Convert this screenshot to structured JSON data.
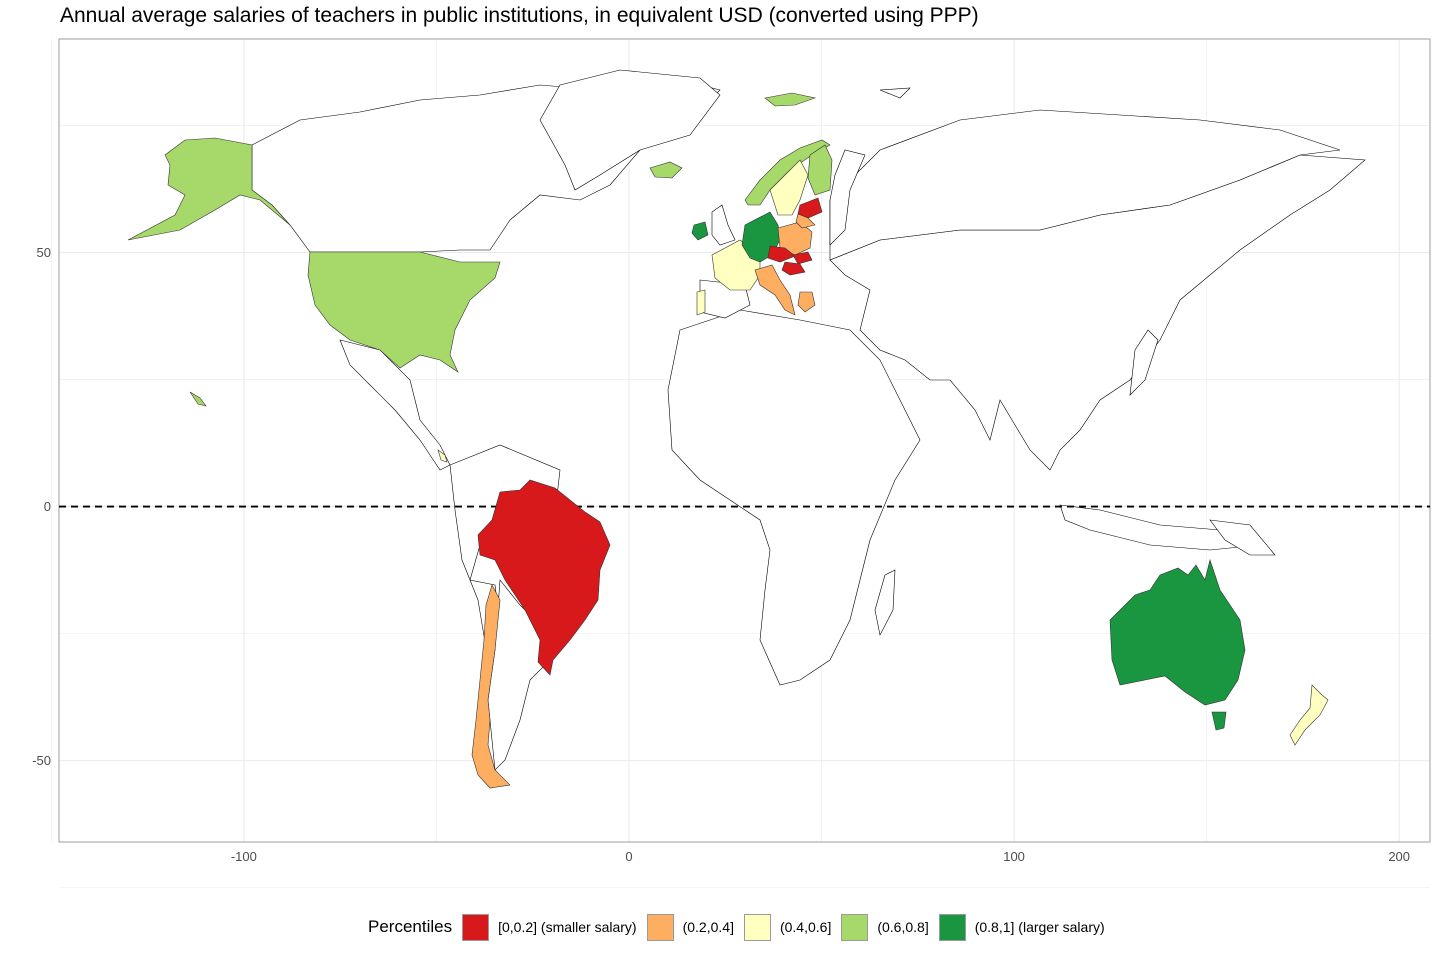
{
  "title": "Annual average salaries of teachers in public institutions, in equivalent USD (converted using PPP)",
  "colors": {
    "q1": "#d7191c",
    "q2": "#fdae61",
    "q3": "#ffffbf",
    "q4": "#a6d96a",
    "q5": "#1a9641",
    "no_data": "#ffffff",
    "grid": "#ebebeb",
    "outline": "#000000"
  },
  "axes": {
    "x_ticks": [
      {
        "value": -100,
        "label": "-100"
      },
      {
        "value": 0,
        "label": "0"
      },
      {
        "value": 100,
        "label": "100"
      },
      {
        "value": 200,
        "label": "200"
      }
    ],
    "y_ticks": [
      {
        "value": 50,
        "label": "50"
      },
      {
        "value": 0,
        "label": "0"
      },
      {
        "value": -50,
        "label": "-50"
      }
    ],
    "x_range": [
      -148,
      208
    ],
    "y_range": [
      -66,
      92
    ],
    "equator_line": "dashed"
  },
  "legend": {
    "title": "Percentiles",
    "position": "bottom",
    "items": [
      {
        "label": "[0,0.2] (smaller salary)",
        "color": "#d7191c"
      },
      {
        "label": "(0.2,0.4]",
        "color": "#fdae61"
      },
      {
        "label": "(0.4,0.6]",
        "color": "#ffffbf"
      },
      {
        "label": "(0.6,0.8]",
        "color": "#a6d96a"
      },
      {
        "label": "(0.8,1] (larger salary)",
        "color": "#1a9641"
      }
    ]
  },
  "countries": [
    {
      "name": "United States",
      "class": "q4"
    },
    {
      "name": "Alaska",
      "class": "q4"
    },
    {
      "name": "Brazil",
      "class": "q1"
    },
    {
      "name": "Chile",
      "class": "q2"
    },
    {
      "name": "Costa Rica",
      "class": "q3"
    },
    {
      "name": "Australia",
      "class": "q5"
    },
    {
      "name": "New Zealand",
      "class": "q3"
    },
    {
      "name": "Ireland",
      "class": "q5"
    },
    {
      "name": "Germany",
      "class": "q5"
    },
    {
      "name": "France",
      "class": "q3"
    },
    {
      "name": "Portugal",
      "class": "q3"
    },
    {
      "name": "Italy",
      "class": "q2"
    },
    {
      "name": "Greece",
      "class": "q2"
    },
    {
      "name": "Poland",
      "class": "q2"
    },
    {
      "name": "Czech Republic",
      "class": "q1"
    },
    {
      "name": "Slovakia",
      "class": "q1"
    },
    {
      "name": "Hungary",
      "class": "q1"
    },
    {
      "name": "Latvia",
      "class": "q1"
    },
    {
      "name": "Lithuania",
      "class": "q2"
    },
    {
      "name": "Norway",
      "class": "q4"
    },
    {
      "name": "Sweden",
      "class": "q3"
    },
    {
      "name": "Finland",
      "class": "q4"
    },
    {
      "name": "Iceland",
      "class": "q4"
    },
    {
      "name": "Svalbard",
      "class": "q4"
    }
  ]
}
